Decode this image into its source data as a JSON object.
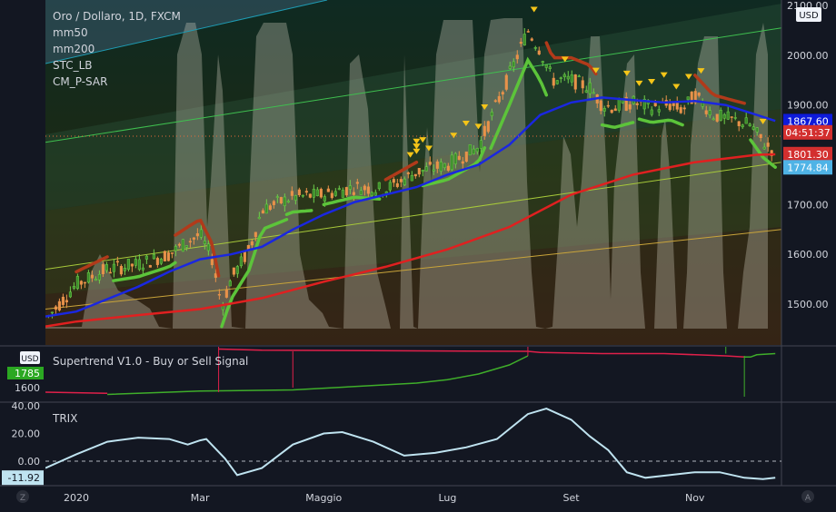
{
  "chart_data": [
    {
      "type": "candlestick",
      "legend": [
        "Oro / Dollaro, 1D, FXCM",
        "mm50",
        "mm200",
        "STC_LB",
        "CM_P-SAR"
      ],
      "currency": "USD",
      "y_ticks": [
        "2100.00",
        "2000.00",
        "1900.00",
        "1800.00",
        "1700.00",
        "1600.00",
        "1500.00"
      ],
      "ylim": [
        1455,
        2100
      ],
      "x_ticks": [
        {
          "label": "2020",
          "x": 0
        },
        {
          "label": "Mar",
          "x": 2
        },
        {
          "label": "Maggio",
          "x": 4
        },
        {
          "label": "Lug",
          "x": 6
        },
        {
          "label": "Set",
          "x": 8
        },
        {
          "label": "Nov",
          "x": 10
        }
      ],
      "xlim": [
        -0.5,
        11.4
      ],
      "price_labels": [
        {
          "label": "1867.60",
          "value": 1867.6,
          "color": "#0d1adb"
        },
        {
          "label": "04:51:37",
          "value": 1845,
          "color": "#d32f2f"
        },
        {
          "label": "1801.30",
          "value": 1801.3,
          "color": "#d32f2f"
        },
        {
          "label": "1774.84",
          "value": 1774.84,
          "color": "#4fb3e6"
        }
      ],
      "close_price": [
        [
          -0.5,
          1468
        ],
        [
          0,
          1540
        ],
        [
          0.5,
          1570
        ],
        [
          1,
          1580
        ],
        [
          1.5,
          1600
        ],
        [
          1.8,
          1625
        ],
        [
          2,
          1640
        ],
        [
          2.2,
          1590
        ],
        [
          2.35,
          1495
        ],
        [
          2.5,
          1550
        ],
        [
          2.8,
          1610
        ],
        [
          3,
          1690
        ],
        [
          3.5,
          1715
        ],
        [
          4,
          1720
        ],
        [
          4.5,
          1735
        ],
        [
          5,
          1730
        ],
        [
          5.5,
          1765
        ],
        [
          6,
          1780
        ],
        [
          6.5,
          1815
        ],
        [
          7,
          1960
        ],
        [
          7.3,
          2050
        ],
        [
          7.5,
          2010
        ],
        [
          7.7,
          1950
        ],
        [
          8,
          1950
        ],
        [
          8.3,
          1935
        ],
        [
          8.5,
          1900
        ],
        [
          8.7,
          1895
        ],
        [
          9,
          1905
        ],
        [
          9.3,
          1895
        ],
        [
          9.6,
          1900
        ],
        [
          9.8,
          1890
        ],
        [
          10,
          1920
        ],
        [
          10.3,
          1880
        ],
        [
          10.6,
          1870
        ],
        [
          10.9,
          1860
        ],
        [
          11.1,
          1825
        ],
        [
          11.3,
          1805
        ]
      ],
      "mm50": [
        [
          -0.5,
          1475
        ],
        [
          0,
          1485
        ],
        [
          0.5,
          1510
        ],
        [
          1,
          1535
        ],
        [
          1.5,
          1565
        ],
        [
          2,
          1590
        ],
        [
          2.5,
          1600
        ],
        [
          3,
          1615
        ],
        [
          3.5,
          1650
        ],
        [
          4,
          1680
        ],
        [
          4.5,
          1705
        ],
        [
          5,
          1720
        ],
        [
          5.5,
          1735
        ],
        [
          6,
          1760
        ],
        [
          6.5,
          1780
        ],
        [
          7,
          1820
        ],
        [
          7.5,
          1880
        ],
        [
          8,
          1905
        ],
        [
          8.5,
          1915
        ],
        [
          9,
          1910
        ],
        [
          9.5,
          1905
        ],
        [
          10,
          1908
        ],
        [
          10.5,
          1900
        ],
        [
          11,
          1880
        ],
        [
          11.3,
          1868
        ]
      ],
      "mm200": [
        [
          -0.5,
          1455
        ],
        [
          0,
          1465
        ],
        [
          1,
          1478
        ],
        [
          2,
          1490
        ],
        [
          3,
          1512
        ],
        [
          4,
          1545
        ],
        [
          5,
          1575
        ],
        [
          6,
          1610
        ],
        [
          7,
          1655
        ],
        [
          8,
          1720
        ],
        [
          9,
          1760
        ],
        [
          10,
          1785
        ],
        [
          11,
          1800
        ],
        [
          11.3,
          1801
        ]
      ],
      "trend_lines": [
        [
          [
            -0.5,
            1825
          ],
          [
            11.4,
            2055
          ]
        ],
        [
          [
            -0.5,
            1570
          ],
          [
            11.4,
            1785
          ]
        ],
        [
          [
            -0.5,
            1490
          ],
          [
            11.4,
            1650
          ]
        ]
      ]
    },
    {
      "type": "line",
      "title": "Supertrend V1.0 - Buy or Sell Signal",
      "currency": "USD",
      "y_ticks": [
        "1600"
      ],
      "badge": "1785",
      "buy_line": [
        [
          0.5,
          1510
        ],
        [
          1.5,
          1520
        ],
        [
          2,
          1525
        ],
        [
          3.5,
          1530
        ],
        [
          4.5,
          1545
        ],
        [
          5.5,
          1560
        ],
        [
          6,
          1575
        ],
        [
          6.5,
          1600
        ],
        [
          7,
          1640
        ],
        [
          7.3,
          1680
        ]
      ],
      "sell_line": [
        [
          2.3,
          1710
        ],
        [
          3,
          1705
        ],
        [
          7.3,
          1700
        ],
        [
          7.5,
          1695
        ],
        [
          8.5,
          1690
        ],
        [
          9.5,
          1690
        ],
        [
          10.5,
          1680
        ],
        [
          10.8,
          1675
        ]
      ]
    },
    {
      "type": "line",
      "title": "TRIX",
      "y_ticks": [
        "40.00",
        "20.00",
        "0.00",
        "-11.92"
      ],
      "ylim": [
        -15,
        42
      ],
      "zero_line": 0,
      "values": [
        [
          -0.5,
          -5
        ],
        [
          0,
          5
        ],
        [
          0.5,
          14
        ],
        [
          1,
          17
        ],
        [
          1.5,
          16
        ],
        [
          1.8,
          12
        ],
        [
          2,
          15
        ],
        [
          2.1,
          16
        ],
        [
          2.4,
          2
        ],
        [
          2.6,
          -10
        ],
        [
          3,
          -5
        ],
        [
          3.5,
          12
        ],
        [
          4,
          20
        ],
        [
          4.3,
          21
        ],
        [
          4.8,
          14
        ],
        [
          5.3,
          4
        ],
        [
          5.8,
          6
        ],
        [
          6.3,
          10
        ],
        [
          6.8,
          16
        ],
        [
          7.3,
          34
        ],
        [
          7.6,
          38
        ],
        [
          8,
          30
        ],
        [
          8.3,
          18
        ],
        [
          8.6,
          8
        ],
        [
          8.9,
          -8
        ],
        [
          9.2,
          -12
        ],
        [
          9.6,
          -10
        ],
        [
          10,
          -8
        ],
        [
          10.4,
          -8
        ],
        [
          10.8,
          -12
        ],
        [
          11.1,
          -13
        ],
        [
          11.3,
          -12
        ]
      ]
    }
  ],
  "ui": {
    "left_z_label": "Z",
    "right_a_label": "A"
  }
}
